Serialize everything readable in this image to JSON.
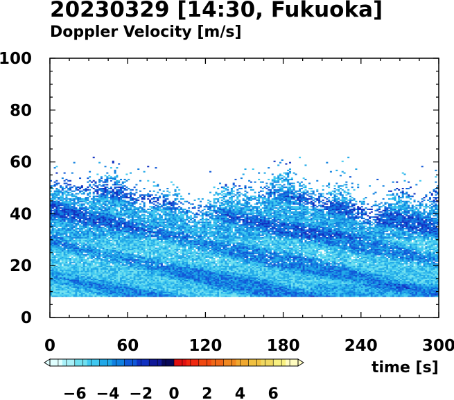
{
  "title": "20230329 [14:30, Fukuoka]",
  "subtitle": "Doppler Velocity [m/s]",
  "chart_data": {
    "type": "heatmap",
    "title": "20230329 [14:30, Fukuoka]",
    "subtitle": "Doppler Velocity [m/s]",
    "xlabel": "time [s]",
    "ylabel": "",
    "xlim": [
      0,
      300
    ],
    "ylim": [
      0,
      100
    ],
    "x_ticks": [
      0,
      60,
      120,
      180,
      240,
      300
    ],
    "y_ticks": [
      0,
      20,
      40,
      60,
      80,
      100
    ],
    "x_tick_labels": [
      "0",
      "60",
      "120",
      "180",
      "240",
      "300"
    ],
    "y_tick_labels": [
      "0",
      "20",
      "40",
      "60",
      "80",
      "100"
    ],
    "data_bottom": 8,
    "echo_top_typical": 50,
    "echo_top_max": 62,
    "dominant_velocity_range": [
      -6,
      -2
    ],
    "colorbar": {
      "min": -7.5,
      "max": 7.5,
      "ticks": [
        -6,
        -4,
        -2,
        0,
        2,
        4,
        6
      ],
      "tick_labels": [
        "−6",
        "−4",
        "−2",
        "0",
        "2",
        "4",
        "6"
      ],
      "negative_colors": [
        "#e0ffff",
        "#a8f0f8",
        "#70e0f0",
        "#40c8f0",
        "#20a8e8",
        "#1080e0",
        "#1058d8",
        "#1030c0",
        "#101898",
        "#080858"
      ],
      "positive_colors": [
        "#e01010",
        "#f02810",
        "#f04810",
        "#f06818",
        "#f08820",
        "#f0a830",
        "#f0c040",
        "#f0d860",
        "#f8f080",
        "#fffcc0"
      ]
    },
    "grid": false
  }
}
